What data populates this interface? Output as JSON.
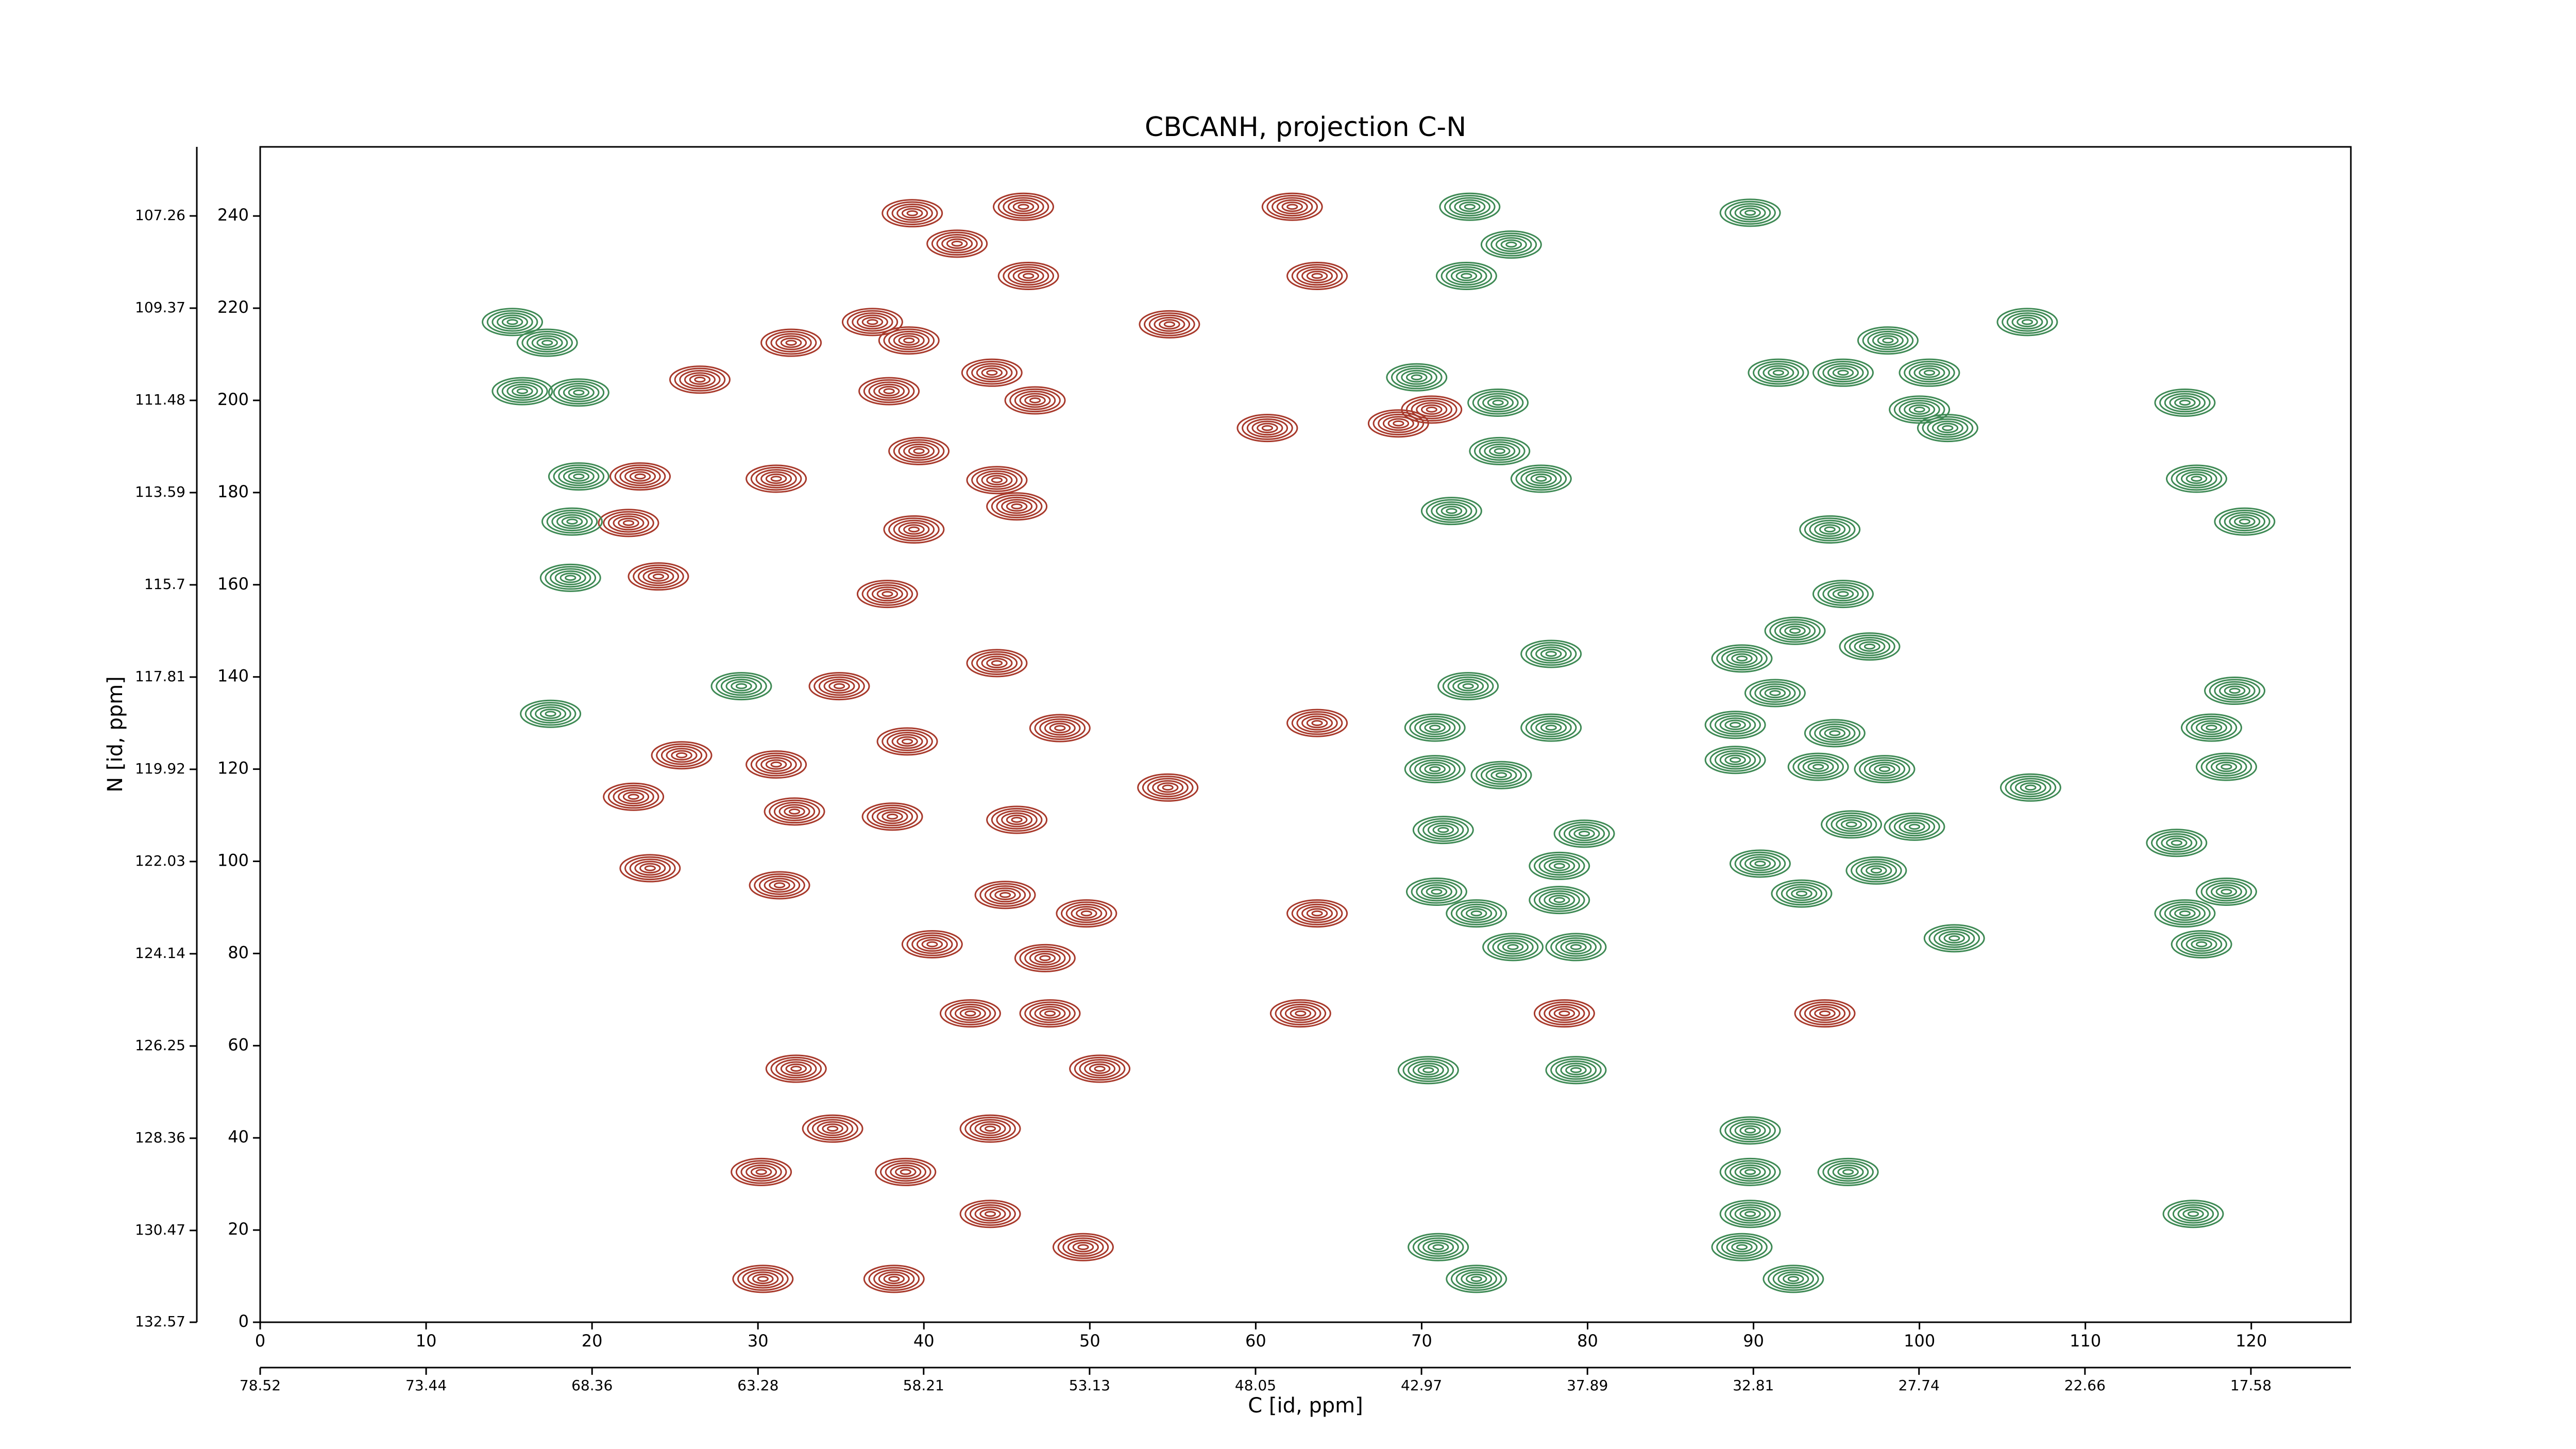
{
  "chart_data": {
    "type": "contour",
    "title": "CBCANH, projection C-N",
    "xlabel": "C [id, ppm]",
    "ylabel": "N [id, ppm]",
    "xlim": [
      0,
      126
    ],
    "xticks": [
      0,
      10,
      20,
      30,
      40,
      50,
      60,
      70,
      80,
      90,
      100,
      110,
      120
    ],
    "x2lim": [
      78.52,
      14.52
    ],
    "x2ticks": [
      78.52,
      73.44,
      68.36,
      63.28,
      58.21,
      53.13,
      48.05,
      42.97,
      37.89,
      32.81,
      27.74,
      22.66,
      17.58
    ],
    "ylim": [
      0,
      255
    ],
    "yticks": [
      0,
      20,
      40,
      60,
      80,
      100,
      120,
      140,
      160,
      180,
      200,
      220,
      240
    ],
    "y2lim": [
      132.57,
      105.68
    ],
    "y2ticks": [
      132.57,
      130.47,
      128.36,
      126.25,
      124.14,
      122.03,
      119.92,
      117.81,
      115.7,
      113.59,
      111.48,
      109.37,
      107.26
    ],
    "series": [
      {
        "color": "#a83a2c",
        "x": [
          39.3,
          46,
          42,
          46.3,
          63.7,
          62.2,
          36.9,
          32,
          39.1,
          54.8,
          26.5,
          37.9,
          44.1,
          46.7,
          60.7,
          68.6,
          70.6,
          39.7,
          22.9,
          31.1,
          44.4,
          45.6,
          22.2,
          39.4,
          24,
          37.8,
          34.9,
          44.4,
          48.2,
          39,
          63.7,
          25.4,
          31.1,
          54.7,
          22.5,
          32.2,
          38.1,
          45.6,
          23.5,
          31.3,
          44.9,
          49.8,
          63.7,
          40.5,
          47.3,
          42.8,
          47.6,
          62.7,
          94.3,
          78.6,
          32.3,
          50.6,
          34.5,
          44,
          38.9,
          30.2,
          44,
          49.6,
          30.3,
          38.2
        ],
        "values": [
          240.6,
          242,
          234,
          227,
          227,
          242,
          217,
          212.5,
          213,
          216.5,
          204.5,
          202,
          206,
          200,
          194,
          195,
          198,
          189,
          183.5,
          183,
          182.7,
          177,
          173.4,
          172,
          161.8,
          158,
          138,
          143,
          128.9,
          126,
          130,
          123,
          121,
          116,
          114,
          110.8,
          109.7,
          109,
          98.5,
          94.8,
          92.7,
          88.7,
          88.7,
          82,
          79,
          67,
          67,
          67,
          67,
          67,
          55,
          55,
          42,
          42,
          32.6,
          32.6,
          23.5,
          16.3,
          9.4,
          9.4
        ]
      },
      {
        "color": "#3f8a55",
        "x": [
          15.2,
          17.3,
          15.8,
          19.2,
          19.2,
          18.8,
          18.7,
          17.5,
          29,
          72.9,
          75.4,
          72.7,
          69.7,
          74.6,
          74.7,
          77.2,
          71.8,
          89.8,
          98.1,
          95.4,
          91.5,
          100.6,
          100,
          101.7,
          106.5,
          116,
          116.7,
          119.6,
          94.6,
          95.4,
          92.5,
          97,
          89.3,
          91.3,
          119,
          117.6,
          72.8,
          77.8,
          70.8,
          77.8,
          88.9,
          94.9,
          70.8,
          74.8,
          88.9,
          93.9,
          97.9,
          118.5,
          71.3,
          79.8,
          95.9,
          99.7,
          115.5,
          90.4,
          97.4,
          78.3,
          118.5,
          70.9,
          92.9,
          78.3,
          116,
          73.3,
          75.5,
          102.1,
          79.3,
          117,
          70.4,
          79.3,
          89.8,
          95.7,
          89.8,
          89.8,
          116.5,
          71,
          73.3,
          89.3,
          92.4,
          106.7
        ],
        "values": [
          217,
          212.5,
          202,
          201.7,
          183.5,
          173.7,
          161.5,
          132,
          138,
          242,
          233.8,
          227,
          205,
          199.5,
          189,
          183,
          176,
          240.7,
          213,
          206,
          206,
          206,
          198,
          194,
          217,
          199.5,
          183,
          173.7,
          172,
          158,
          150,
          146.6,
          144,
          136.5,
          137,
          129,
          138,
          145,
          129,
          129,
          129.6,
          127.8,
          120,
          118.7,
          122,
          120.5,
          120,
          120.5,
          106.8,
          106,
          108,
          107.5,
          104,
          99.5,
          98,
          99,
          93.4,
          93.4,
          93,
          91.6,
          88.7,
          88.7,
          81.4,
          83.3,
          81.4,
          82,
          54.7,
          54.7,
          41.6,
          32.6,
          32.6,
          23.5,
          23.5,
          16.3,
          9.4,
          16.3,
          9.4,
          116
        ]
      }
    ]
  }
}
